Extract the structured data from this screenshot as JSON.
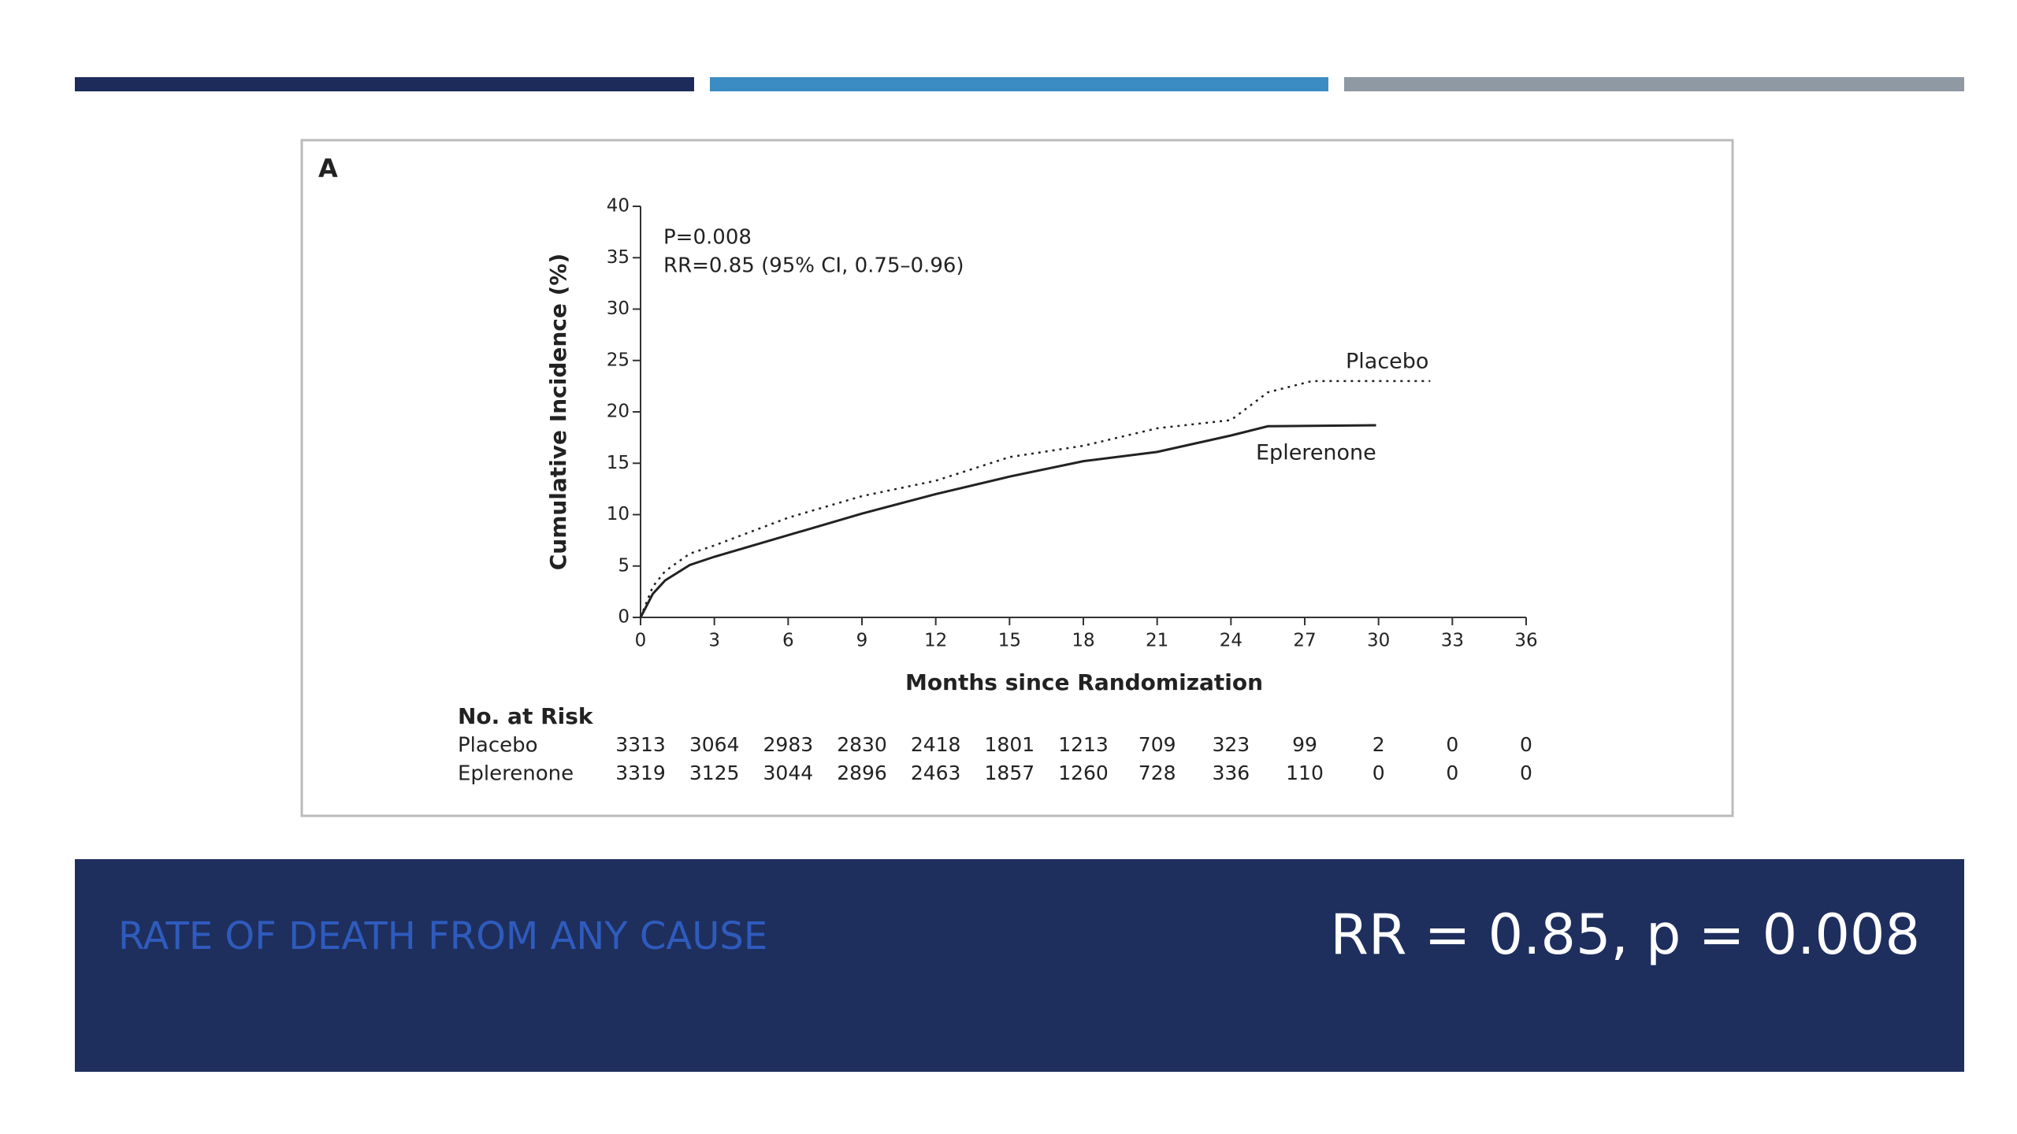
{
  "chart_data": {
    "type": "line",
    "panel_label": "A",
    "xlabel": "Months since Randomization",
    "ylabel": "Cumulative Incidence (%)",
    "annotations": [
      "P=0.008",
      "RR=0.85 (95% CI, 0.75–0.96)"
    ],
    "xlim": [
      0,
      36
    ],
    "xticks": [
      0,
      3,
      6,
      9,
      12,
      15,
      18,
      21,
      24,
      27,
      30,
      33,
      36
    ],
    "ylim": [
      0,
      40
    ],
    "yticks": [
      0,
      5,
      10,
      15,
      20,
      25,
      30,
      35,
      40
    ],
    "series": [
      {
        "name": "Placebo",
        "color": "#222222",
        "line_style": "dotted",
        "x": [
          0,
          0.5,
          1,
          2,
          3,
          6,
          9,
          12,
          15,
          18,
          21,
          24,
          25.5,
          27.3,
          32.1
        ],
        "values": [
          0,
          3,
          4.5,
          6.2,
          7,
          9.7,
          11.8,
          13.3,
          15.6,
          16.7,
          18.4,
          19.2,
          21.9,
          23,
          23
        ]
      },
      {
        "name": "Eplerenone",
        "color": "#222222",
        "line_style": "solid",
        "x": [
          0,
          0.5,
          1,
          2,
          3,
          6,
          9,
          12,
          15,
          18,
          21,
          24,
          25.5,
          29.9
        ],
        "values": [
          0,
          2.3,
          3.6,
          5.1,
          5.9,
          8,
          10.1,
          12,
          13.7,
          15.2,
          16.1,
          17.7,
          18.6,
          18.7
        ]
      }
    ],
    "risk_table": {
      "title": "No. at Risk",
      "rows": [
        {
          "name": "Placebo",
          "values": [
            3313,
            3064,
            2983,
            2830,
            2418,
            1801,
            1213,
            709,
            323,
            99,
            2,
            0,
            0
          ]
        },
        {
          "name": "Eplerenone",
          "values": [
            3319,
            3125,
            3044,
            2896,
            2463,
            1857,
            1260,
            728,
            336,
            110,
            0,
            0,
            0
          ]
        }
      ]
    }
  },
  "footer": {
    "title": "RATE OF DEATH FROM ANY CAUSE",
    "result": "RR = 0.85, p = 0.008"
  }
}
